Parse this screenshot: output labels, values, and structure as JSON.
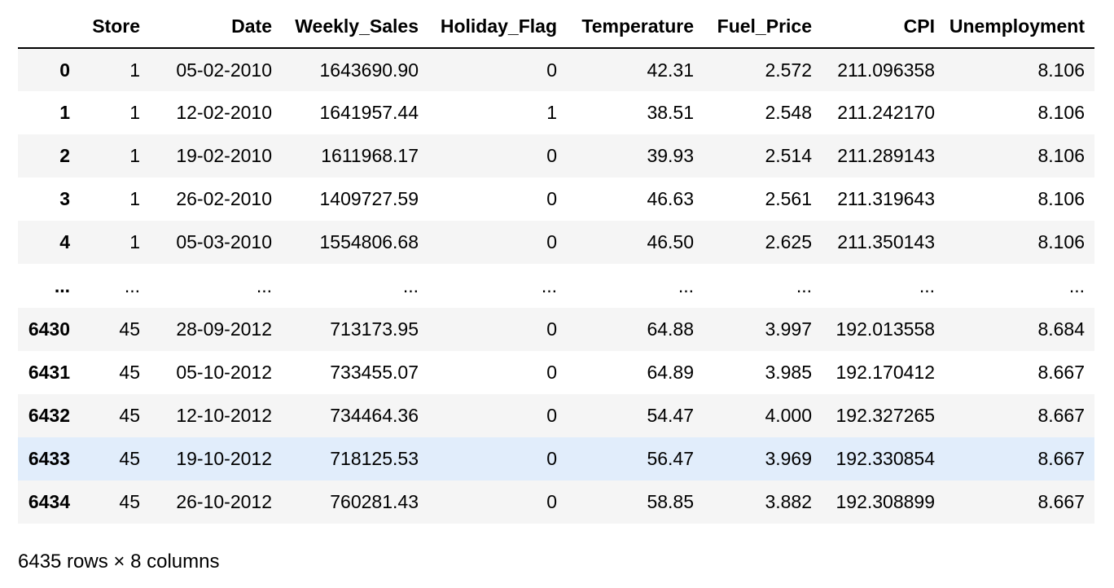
{
  "table": {
    "columns": [
      "",
      "Store",
      "Date",
      "Weekly_Sales",
      "Holiday_Flag",
      "Temperature",
      "Fuel_Price",
      "CPI",
      "Unemployment"
    ],
    "rows": [
      {
        "index": "0",
        "cells": [
          "1",
          "05-02-2010",
          "1643690.90",
          "0",
          "42.31",
          "2.572",
          "211.096358",
          "8.106"
        ]
      },
      {
        "index": "1",
        "cells": [
          "1",
          "12-02-2010",
          "1641957.44",
          "1",
          "38.51",
          "2.548",
          "211.242170",
          "8.106"
        ]
      },
      {
        "index": "2",
        "cells": [
          "1",
          "19-02-2010",
          "1611968.17",
          "0",
          "39.93",
          "2.514",
          "211.289143",
          "8.106"
        ]
      },
      {
        "index": "3",
        "cells": [
          "1",
          "26-02-2010",
          "1409727.59",
          "0",
          "46.63",
          "2.561",
          "211.319643",
          "8.106"
        ]
      },
      {
        "index": "4",
        "cells": [
          "1",
          "05-03-2010",
          "1554806.68",
          "0",
          "46.50",
          "2.625",
          "211.350143",
          "8.106"
        ]
      },
      {
        "index": "...",
        "cells": [
          "...",
          "...",
          "...",
          "...",
          "...",
          "...",
          "...",
          "..."
        ]
      },
      {
        "index": "6430",
        "cells": [
          "45",
          "28-09-2012",
          "713173.95",
          "0",
          "64.88",
          "3.997",
          "192.013558",
          "8.684"
        ]
      },
      {
        "index": "6431",
        "cells": [
          "45",
          "05-10-2012",
          "733455.07",
          "0",
          "64.89",
          "3.985",
          "192.170412",
          "8.667"
        ]
      },
      {
        "index": "6432",
        "cells": [
          "45",
          "12-10-2012",
          "734464.36",
          "0",
          "54.47",
          "4.000",
          "192.327265",
          "8.667"
        ]
      },
      {
        "index": "6433",
        "cells": [
          "45",
          "19-10-2012",
          "718125.53",
          "0",
          "56.47",
          "3.969",
          "192.330854",
          "8.667"
        ]
      },
      {
        "index": "6434",
        "cells": [
          "45",
          "26-10-2012",
          "760281.43",
          "0",
          "58.85",
          "3.882",
          "192.308899",
          "8.667"
        ]
      }
    ],
    "highlighted_row": "6433"
  },
  "footer": {
    "shape_text": "6435 rows × 8 columns"
  },
  "colors": {
    "row_odd": "#f5f5f5",
    "row_even": "#ffffff",
    "row_hover": "#e1edfb",
    "header_rule": "#000000"
  }
}
